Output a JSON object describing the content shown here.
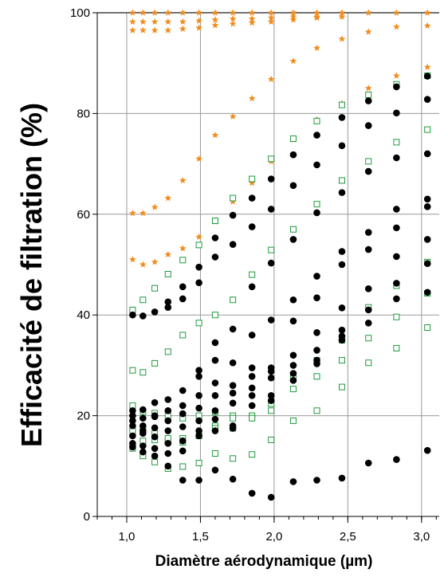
{
  "chart_data": {
    "type": "scatter",
    "xlabel": "Diamètre aérodynamique (µm)",
    "ylabel": "Efficacité de filtration (%)",
    "xlim": [
      0.8,
      3.12
    ],
    "ylim": [
      0,
      100
    ],
    "x_ticks": [
      1.0,
      1.5,
      2.0,
      2.5,
      3.0
    ],
    "x_tick_labels": [
      "1,0",
      "1,5",
      "2,0",
      "2,5",
      "3,0"
    ],
    "y_ticks": [
      0,
      20,
      40,
      60,
      80,
      100
    ],
    "y_tick_labels": [
      "0",
      "20",
      "40",
      "60",
      "80",
      "100"
    ],
    "grid": true,
    "legend": "none",
    "series": [
      {
        "marker": "star",
        "color": "#f28c1e",
        "points": [
          [
            1.04,
            100
          ],
          [
            1.11,
            100
          ],
          [
            1.19,
            100
          ],
          [
            1.28,
            100
          ],
          [
            1.38,
            100
          ],
          [
            1.49,
            100
          ],
          [
            1.6,
            100
          ],
          [
            1.72,
            100
          ],
          [
            1.85,
            100
          ],
          [
            1.98,
            100
          ],
          [
            2.13,
            100
          ],
          [
            2.29,
            100
          ],
          [
            2.46,
            100
          ],
          [
            2.64,
            100
          ],
          [
            2.83,
            100
          ],
          [
            3.04,
            100
          ],
          [
            1.04,
            98.2
          ],
          [
            1.11,
            98.2
          ],
          [
            1.19,
            98.2
          ],
          [
            1.28,
            98.2
          ],
          [
            1.38,
            98.2
          ],
          [
            1.49,
            98.4
          ],
          [
            1.6,
            98.6
          ],
          [
            1.72,
            98.8
          ],
          [
            1.85,
            98.8
          ],
          [
            1.98,
            99.0
          ],
          [
            2.13,
            99.2
          ],
          [
            2.29,
            99.2
          ],
          [
            2.46,
            99.2
          ],
          [
            1.04,
            96.5
          ],
          [
            1.11,
            96.5
          ],
          [
            1.19,
            96.5
          ],
          [
            1.28,
            96.5
          ],
          [
            1.38,
            96.8
          ],
          [
            1.49,
            97.0
          ],
          [
            1.6,
            97.5
          ],
          [
            1.72,
            97.8
          ],
          [
            1.85,
            98.0
          ],
          [
            1.98,
            98.2
          ],
          [
            2.13,
            98.6
          ],
          [
            2.29,
            99.0
          ],
          [
            2.46,
            99.2
          ],
          [
            2.64,
            96.2
          ],
          [
            2.83,
            97.2
          ],
          [
            3.04,
            97.4
          ],
          [
            1.04,
            60.2
          ],
          [
            1.11,
            60.2
          ],
          [
            1.19,
            61.4
          ],
          [
            1.28,
            63.2
          ],
          [
            1.38,
            66.7
          ],
          [
            1.49,
            71.0
          ],
          [
            1.6,
            75.7
          ],
          [
            1.72,
            79.4
          ],
          [
            1.85,
            83.0
          ],
          [
            1.98,
            86.8
          ],
          [
            2.13,
            90.4
          ],
          [
            2.29,
            93.0
          ],
          [
            2.46,
            94.8
          ],
          [
            1.04,
            51.0
          ],
          [
            1.11,
            50.0
          ],
          [
            1.19,
            50.5
          ],
          [
            1.28,
            52.0
          ],
          [
            1.38,
            53.2
          ],
          [
            1.49,
            55.5
          ],
          [
            1.6,
            58.5
          ],
          [
            1.72,
            62.5
          ],
          [
            1.85,
            66.2
          ],
          [
            1.98,
            70.5
          ],
          [
            2.13,
            74.8
          ],
          [
            2.29,
            78.8
          ],
          [
            2.46,
            82.0
          ],
          [
            2.64,
            85.0
          ],
          [
            2.83,
            87.5
          ],
          [
            3.04,
            89.2
          ]
        ]
      },
      {
        "marker": "open-square",
        "color": "#1f9a3a",
        "points": [
          [
            1.04,
            41.0
          ],
          [
            1.11,
            43.0
          ],
          [
            1.19,
            45.3
          ],
          [
            1.28,
            48.1
          ],
          [
            1.38,
            50.9
          ],
          [
            1.49,
            53.9
          ],
          [
            1.6,
            58.7
          ],
          [
            1.72,
            63.2
          ],
          [
            1.85,
            67.0
          ],
          [
            1.98,
            71.0
          ],
          [
            2.13,
            75.0
          ],
          [
            2.29,
            78.5
          ],
          [
            2.46,
            81.7
          ],
          [
            2.64,
            83.7
          ],
          [
            2.83,
            85.8
          ],
          [
            3.04,
            87.5
          ],
          [
            1.04,
            29.0
          ],
          [
            1.11,
            28.6
          ],
          [
            1.19,
            30.4
          ],
          [
            1.28,
            32.7
          ],
          [
            1.38,
            36.0
          ],
          [
            1.49,
            38.4
          ],
          [
            1.6,
            40.0
          ],
          [
            1.72,
            43.0
          ],
          [
            1.85,
            48.0
          ],
          [
            1.98,
            52.9
          ],
          [
            2.13,
            57.0
          ],
          [
            2.29,
            62.0
          ],
          [
            2.46,
            66.7
          ],
          [
            2.64,
            70.5
          ],
          [
            2.83,
            74.3
          ],
          [
            3.04,
            76.8
          ],
          [
            1.04,
            22.0
          ],
          [
            1.11,
            20.8
          ],
          [
            1.19,
            20.5
          ],
          [
            1.28,
            20.0
          ],
          [
            1.38,
            19.5
          ],
          [
            1.49,
            20.0
          ],
          [
            1.6,
            20.7
          ],
          [
            1.72,
            20.0
          ],
          [
            1.85,
            20.0
          ],
          [
            1.98,
            22.4
          ],
          [
            2.13,
            25.3
          ],
          [
            2.29,
            27.8
          ],
          [
            2.46,
            31.0
          ],
          [
            2.64,
            35.4
          ],
          [
            2.83,
            39.6
          ],
          [
            3.04,
            44.3
          ],
          [
            1.04,
            14.0
          ],
          [
            1.11,
            15.0
          ],
          [
            1.19,
            15.2
          ],
          [
            1.28,
            15.0
          ],
          [
            1.38,
            14.7
          ],
          [
            1.49,
            16.0
          ],
          [
            1.6,
            18.0
          ],
          [
            1.72,
            19.5
          ],
          [
            1.85,
            19.5
          ],
          [
            1.98,
            21.0
          ],
          [
            2.13,
            28.0
          ],
          [
            2.29,
            31.0
          ],
          [
            2.46,
            35.0
          ],
          [
            2.64,
            41.5
          ],
          [
            2.83,
            45.8
          ],
          [
            3.04,
            50.5
          ],
          [
            1.04,
            13.5
          ],
          [
            1.11,
            12.0
          ],
          [
            1.19,
            10.8
          ],
          [
            1.28,
            9.5
          ],
          [
            1.38,
            9.9
          ],
          [
            1.49,
            10.6
          ],
          [
            1.6,
            12.5
          ],
          [
            1.72,
            11.5
          ],
          [
            1.85,
            12.3
          ],
          [
            1.98,
            15.2
          ],
          [
            2.13,
            19.0
          ],
          [
            2.29,
            21.0
          ],
          [
            2.46,
            25.7
          ],
          [
            2.64,
            30.5
          ],
          [
            2.83,
            33.4
          ],
          [
            3.04,
            37.5
          ],
          [
            1.04,
            17.0
          ],
          [
            1.11,
            17.5
          ],
          [
            1.19,
            16.5
          ],
          [
            1.28,
            15.5
          ],
          [
            1.38,
            15.5
          ],
          [
            1.49,
            16.0
          ],
          [
            1.6,
            17.5
          ],
          [
            1.72,
            17.5
          ]
        ]
      },
      {
        "marker": "filled-circle",
        "color": "#000000",
        "points": [
          [
            1.04,
            40.0
          ],
          [
            1.11,
            39.8
          ],
          [
            1.19,
            40.6
          ],
          [
            1.28,
            41.5
          ],
          [
            1.38,
            43.2
          ],
          [
            1.49,
            46.4
          ],
          [
            1.6,
            51.5
          ],
          [
            1.72,
            54.0
          ],
          [
            1.85,
            57.5
          ],
          [
            1.98,
            61.0
          ],
          [
            2.13,
            65.7
          ],
          [
            2.29,
            69.8
          ],
          [
            2.46,
            73.6
          ],
          [
            2.64,
            77.6
          ],
          [
            2.83,
            80.1
          ],
          [
            3.04,
            82.8
          ],
          [
            1.28,
            42.6
          ],
          [
            1.38,
            45.6
          ],
          [
            1.49,
            49.5
          ],
          [
            1.6,
            55.3
          ],
          [
            1.72,
            59.8
          ],
          [
            1.85,
            63.2
          ],
          [
            1.98,
            67.0
          ],
          [
            2.13,
            71.8
          ],
          [
            2.29,
            75.7
          ],
          [
            2.46,
            79.2
          ],
          [
            2.64,
            82.5
          ],
          [
            2.83,
            85.3
          ],
          [
            3.04,
            87.4
          ],
          [
            1.49,
            29.0
          ],
          [
            1.6,
            31.0
          ],
          [
            1.72,
            37.2
          ],
          [
            1.85,
            45.6
          ],
          [
            1.98,
            50.3
          ],
          [
            2.13,
            55.0
          ],
          [
            2.29,
            60.3
          ],
          [
            2.46,
            64.3
          ],
          [
            2.64,
            68.5
          ],
          [
            2.83,
            71.2
          ],
          [
            3.04,
            72.0
          ],
          [
            1.04,
            21.0
          ],
          [
            1.11,
            21.2
          ],
          [
            1.19,
            22.6
          ],
          [
            1.28,
            23.2
          ],
          [
            1.38,
            25.0
          ],
          [
            1.49,
            27.8
          ],
          [
            1.6,
            34.5
          ],
          [
            1.72,
            30.5
          ],
          [
            1.85,
            36.0
          ],
          [
            1.98,
            39.0
          ],
          [
            2.13,
            43.0
          ],
          [
            2.29,
            47.7
          ],
          [
            2.46,
            52.6
          ],
          [
            2.64,
            56.4
          ],
          [
            2.83,
            57.3
          ],
          [
            3.04,
            61.5
          ],
          [
            1.04,
            20.0
          ],
          [
            1.11,
            19.5
          ],
          [
            1.19,
            20.0
          ],
          [
            1.28,
            21.0
          ],
          [
            1.38,
            22.0
          ],
          [
            1.49,
            24.0
          ],
          [
            1.6,
            26.5
          ],
          [
            1.72,
            26.0
          ],
          [
            1.85,
            29.5
          ],
          [
            1.98,
            29.5
          ],
          [
            2.13,
            38.8
          ],
          [
            2.29,
            43.4
          ],
          [
            2.46,
            50.0
          ],
          [
            2.64,
            53.0
          ],
          [
            2.83,
            61.0
          ],
          [
            3.04,
            63.0
          ],
          [
            1.04,
            19.0
          ],
          [
            1.11,
            18.0
          ],
          [
            1.19,
            19.8
          ],
          [
            1.28,
            19.0
          ],
          [
            1.38,
            20.4
          ],
          [
            1.49,
            21.5
          ],
          [
            1.6,
            24.0
          ],
          [
            1.72,
            24.5
          ],
          [
            1.85,
            27.8
          ],
          [
            1.98,
            28.8
          ],
          [
            2.13,
            32.0
          ],
          [
            2.29,
            36.5
          ],
          [
            2.46,
            41.4
          ],
          [
            2.64,
            45.2
          ],
          [
            2.83,
            51.6
          ],
          [
            3.04,
            55.0
          ],
          [
            1.04,
            18.0
          ],
          [
            1.11,
            17.0
          ],
          [
            1.19,
            17.6
          ],
          [
            1.28,
            17.0
          ],
          [
            1.38,
            17.8
          ],
          [
            1.49,
            19.0
          ],
          [
            1.6,
            21.0
          ],
          [
            1.72,
            22.5
          ],
          [
            1.85,
            25.5
          ],
          [
            1.98,
            27.5
          ],
          [
            2.13,
            30.0
          ],
          [
            2.29,
            33.0
          ],
          [
            2.46,
            37.0
          ],
          [
            2.64,
            41.0
          ],
          [
            2.83,
            46.3
          ],
          [
            3.04,
            50.2
          ],
          [
            1.04,
            16.0
          ],
          [
            1.11,
            16.5
          ],
          [
            1.19,
            15.8
          ],
          [
            1.28,
            14.5
          ],
          [
            1.38,
            15.0
          ],
          [
            1.49,
            17.0
          ],
          [
            1.6,
            19.3
          ],
          [
            1.72,
            18.0
          ],
          [
            1.85,
            24.0
          ],
          [
            1.98,
            23.0
          ],
          [
            2.13,
            28.4
          ],
          [
            2.29,
            30.3
          ],
          [
            2.46,
            35.8
          ],
          [
            2.64,
            38.4
          ],
          [
            2.83,
            43.2
          ],
          [
            3.04,
            44.5
          ],
          [
            1.04,
            14.5
          ],
          [
            1.11,
            14.0
          ],
          [
            1.19,
            13.5
          ],
          [
            1.28,
            12.5
          ],
          [
            1.38,
            13.0
          ],
          [
            1.49,
            16.0
          ],
          [
            1.6,
            17.0
          ],
          [
            1.72,
            17.5
          ],
          [
            1.85,
            22.0
          ],
          [
            1.98,
            24.0
          ],
          [
            2.13,
            27.0
          ],
          [
            2.29,
            31.0
          ],
          [
            2.46,
            35.0
          ],
          [
            1.04,
            13.8
          ],
          [
            1.11,
            12.8
          ],
          [
            1.19,
            12.0
          ],
          [
            1.28,
            10.0
          ],
          [
            1.38,
            7.2
          ],
          [
            1.49,
            7.2
          ],
          [
            1.6,
            9.2
          ],
          [
            1.72,
            7.4
          ],
          [
            1.85,
            4.6
          ],
          [
            1.98,
            3.8
          ],
          [
            2.13,
            6.9
          ],
          [
            2.29,
            7.2
          ],
          [
            2.46,
            7.6
          ],
          [
            2.64,
            10.6
          ],
          [
            2.83,
            11.3
          ],
          [
            3.04,
            13.1
          ]
        ]
      }
    ]
  }
}
